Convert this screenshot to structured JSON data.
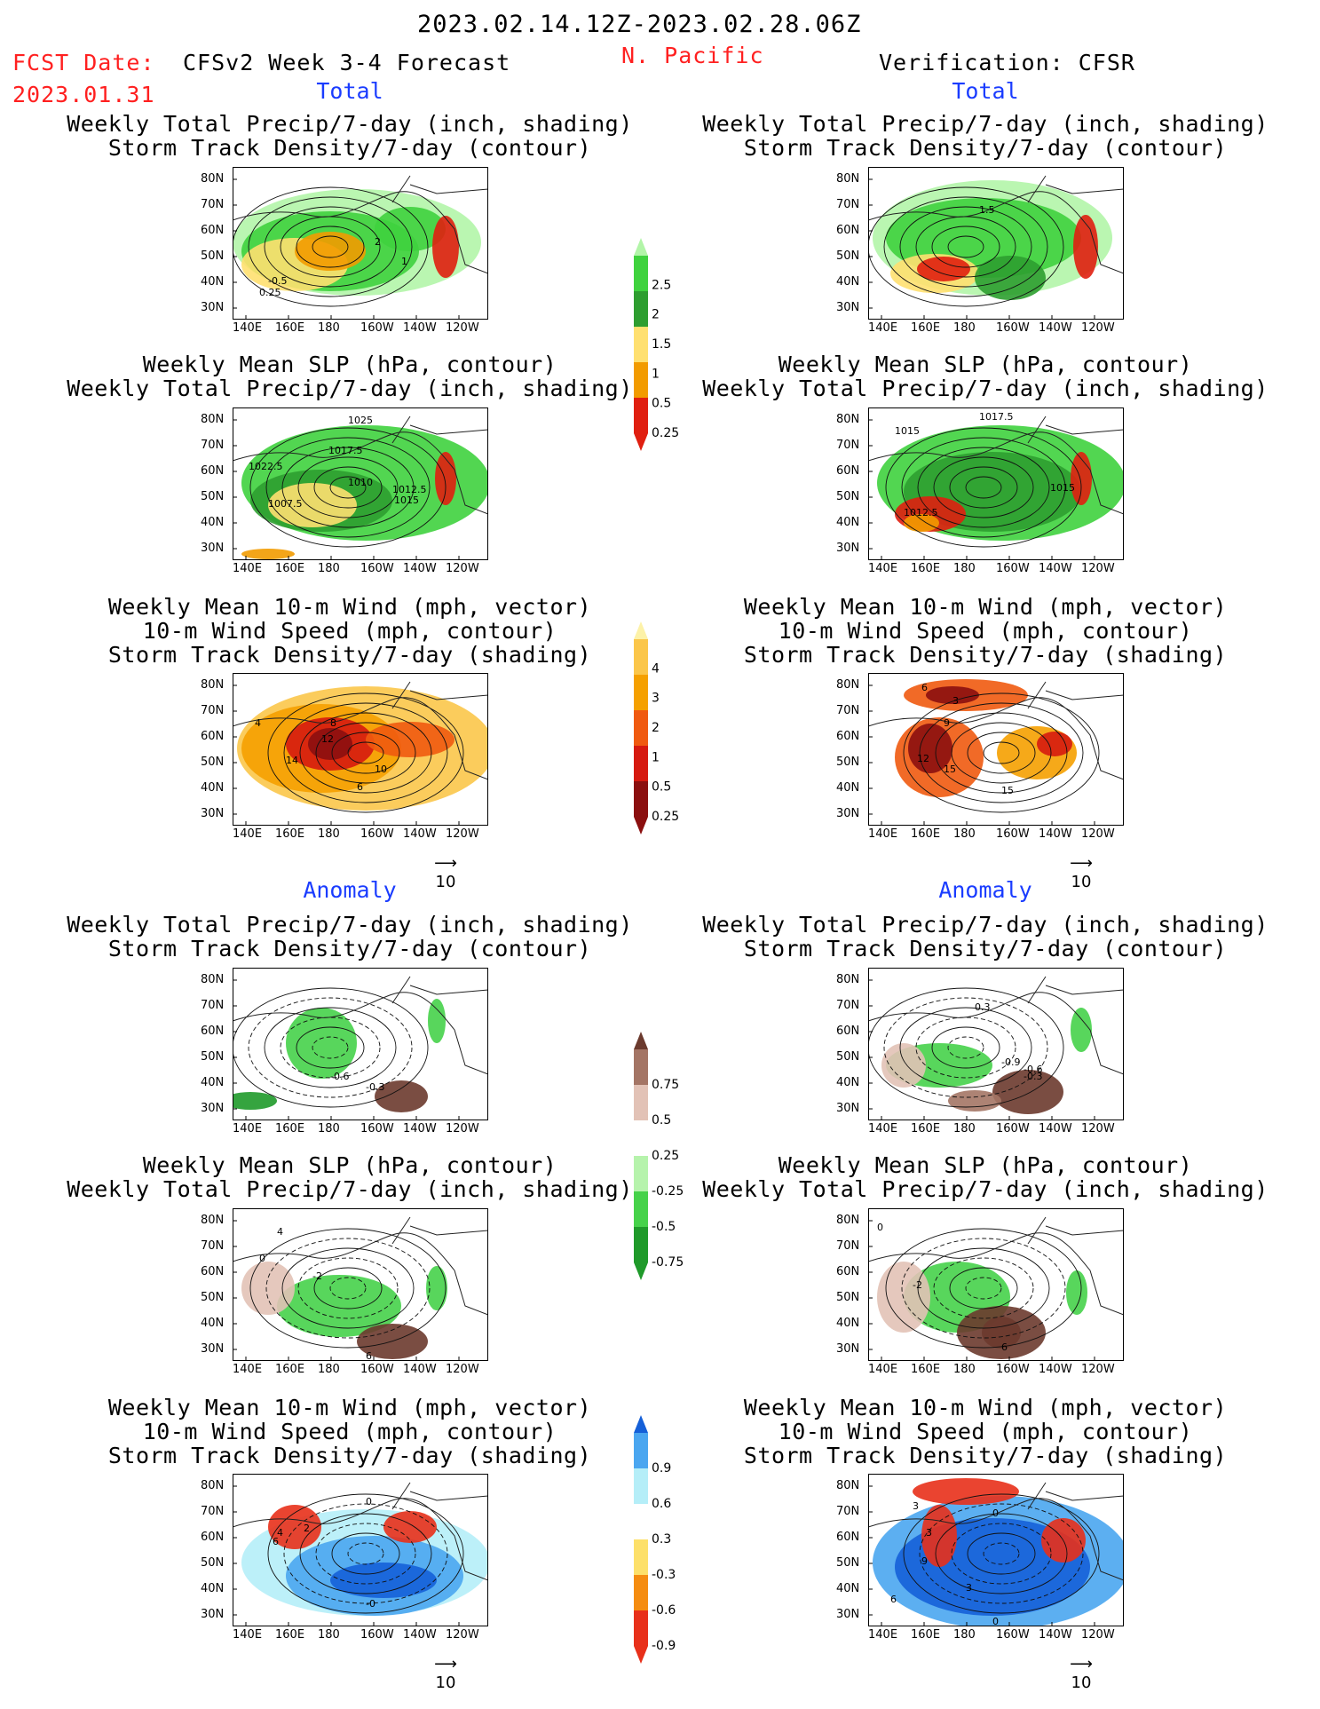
{
  "header": {
    "period": "2023.02.14.12Z-2023.02.28.06Z",
    "fcst_label": "FCST Date:",
    "fcst_date": "2023.01.31",
    "model": "CFSv2 Week 3-4 Forecast",
    "region": "N. Pacific",
    "verification": "Verification: CFSR"
  },
  "sections": {
    "total": "Total",
    "anomaly": "Anomaly"
  },
  "titles": {
    "precip_storm": [
      "Weekly Total Precip/7-day (inch, shading)",
      "Storm Track Density/7-day (contour)"
    ],
    "slp_precip": [
      "Weekly Mean SLP (hPa, contour)",
      "Weekly Total Precip/7-day (inch, shading)"
    ],
    "wind_storm": [
      "Weekly Mean 10-m Wind (mph, vector)",
      "10-m Wind Speed (mph, contour)",
      "Storm Track Density/7-day (shading)"
    ]
  },
  "axes": {
    "lat_labels": [
      "80N",
      "70N",
      "60N",
      "50N",
      "40N",
      "30N"
    ],
    "lon_labels": [
      "140E",
      "160E",
      "180",
      "160W",
      "140W",
      "120W"
    ]
  },
  "vector_scale": "10",
  "colorbars": [
    {
      "name": "total-precip",
      "ticks": [
        "2.5",
        "2",
        "1.5",
        "1",
        "0.5",
        "0.25"
      ],
      "colors": [
        "#e01f10",
        "#f29b00",
        "#ffe070",
        "#2e9e30",
        "#3fd23e",
        "#b2f5a8"
      ]
    },
    {
      "name": "total-storm-density",
      "ticks": [
        "4",
        "3",
        "2",
        "1",
        "0.5",
        "0.25"
      ],
      "colors": [
        "#8b0f0f",
        "#d61a10",
        "#f05a10",
        "#f5a000",
        "#fbc64a",
        "#fdf2a8"
      ]
    },
    {
      "name": "anomaly-precip",
      "ticks": [
        "0.75",
        "0.5",
        "0.25",
        "-0.25",
        "-0.5",
        "-0.75"
      ],
      "colors": [
        "#1f9a2a",
        "#46d24a",
        "#b6f3ac",
        "#ffffff",
        "#e2c2b6",
        "#a47565",
        "#6b3a2e"
      ]
    },
    {
      "name": "anomaly-storm-density",
      "ticks": [
        "0.9",
        "0.6",
        "0.3",
        "-0.3",
        "-0.6",
        "-0.9"
      ],
      "colors": [
        "#e8301a",
        "#f58c10",
        "#fde06a",
        "#ffffff",
        "#b5eef8",
        "#4aa6f0",
        "#1560d8"
      ]
    }
  ],
  "panel_labels": {
    "r1l": [
      {
        "t": "2"
      },
      {
        "t": "1"
      },
      {
        "t": "-0.5"
      },
      {
        "t": "0.25"
      }
    ],
    "r1r": [
      {
        "t": "1.5"
      }
    ],
    "r2l": [
      {
        "t": "1025"
      },
      {
        "t": "1017.5"
      },
      {
        "t": "1022.5"
      },
      {
        "t": "1010"
      },
      {
        "t": "1012.5"
      },
      {
        "t": "1015"
      },
      {
        "t": "1007.5"
      }
    ],
    "r2r": [
      {
        "t": "1015"
      },
      {
        "t": "1017.5"
      },
      {
        "t": "1015"
      },
      {
        "t": "1012.5"
      }
    ],
    "r3l": [
      {
        "t": "12"
      },
      {
        "t": "14"
      },
      {
        "t": "10"
      },
      {
        "t": "6"
      },
      {
        "t": "4"
      },
      {
        "t": "8"
      }
    ],
    "r3r": [
      {
        "t": "6"
      },
      {
        "t": "3"
      },
      {
        "t": "9"
      },
      {
        "t": "12"
      },
      {
        "t": "15"
      },
      {
        "t": "15"
      }
    ],
    "r4l": [
      {
        "t": "-0.6"
      },
      {
        "t": "-0.3"
      }
    ],
    "r4r": [
      {
        "t": "0.3"
      },
      {
        "t": "-0.9"
      },
      {
        "t": "-0.6"
      },
      {
        "t": "-0.3"
      }
    ],
    "r5l": [
      {
        "t": "4"
      },
      {
        "t": "-2"
      },
      {
        "t": "6"
      },
      {
        "t": "0"
      }
    ],
    "r5r": [
      {
        "t": "0"
      },
      {
        "t": "-2"
      },
      {
        "t": "6"
      }
    ],
    "r6l": [
      {
        "t": "4"
      },
      {
        "t": "2"
      },
      {
        "t": "6"
      },
      {
        "t": "0"
      },
      {
        "t": "-0"
      }
    ],
    "r6r": [
      {
        "t": "3"
      },
      {
        "t": "0"
      },
      {
        "t": "3"
      },
      {
        "t": "9"
      },
      {
        "t": "6"
      },
      {
        "t": "3"
      },
      {
        "t": "0"
      }
    ]
  }
}
